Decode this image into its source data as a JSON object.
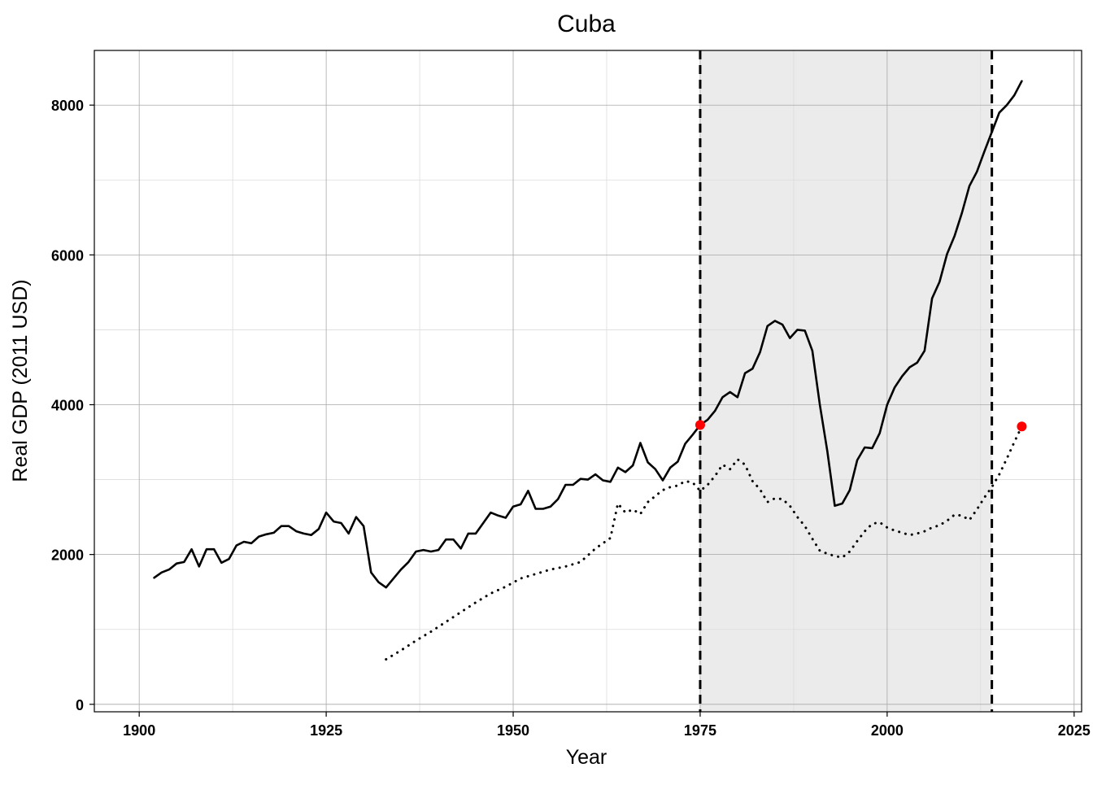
{
  "chart_data": {
    "type": "line",
    "title": "Cuba",
    "xlabel": "Year",
    "ylabel": "Real GDP (2011 USD)",
    "xlim": [
      1894,
      2026
    ],
    "ylim": [
      -100,
      8730
    ],
    "x_ticks": [
      1900,
      1925,
      1950,
      1975,
      2000,
      2025
    ],
    "x_tick_labels": [
      "1900",
      "1925",
      "1950",
      "1975",
      "2000",
      "2025"
    ],
    "y_ticks": [
      0,
      2000,
      4000,
      6000,
      8000
    ],
    "y_tick_labels": [
      "0",
      "2000",
      "4000",
      "6000",
      "8000"
    ],
    "grid": true,
    "shaded_region": {
      "x_start": 1975,
      "x_end": 2014,
      "color": "#ebebeb"
    },
    "vlines": [
      {
        "x": 1975,
        "style": "dashed"
      },
      {
        "x": 2014,
        "style": "dashed"
      }
    ],
    "markers": [
      {
        "x": 1975,
        "y": 3730,
        "color": "#ff0000"
      },
      {
        "x": 2018,
        "y": 3710,
        "color": "#ff0000"
      }
    ],
    "series": [
      {
        "style": "solid",
        "color": "#000000",
        "x": [
          1902,
          1903,
          1904,
          1905,
          1906,
          1907,
          1908,
          1909,
          1910,
          1911,
          1912,
          1913,
          1914,
          1915,
          1916,
          1917,
          1918,
          1919,
          1920,
          1921,
          1922,
          1923,
          1924,
          1925,
          1926,
          1927,
          1928,
          1929,
          1930,
          1931,
          1932,
          1933,
          1934,
          1935,
          1936,
          1937,
          1938,
          1939,
          1940,
          1941,
          1942,
          1943,
          1944,
          1945,
          1946,
          1947,
          1948,
          1949,
          1950,
          1951,
          1952,
          1953,
          1954,
          1955,
          1956,
          1957,
          1958,
          1959,
          1960,
          1961,
          1962,
          1963,
          1964,
          1965,
          1966,
          1967,
          1968,
          1969,
          1970,
          1971,
          1972,
          1973,
          1974,
          1975,
          1976,
          1977,
          1978,
          1979,
          1980,
          1981,
          1982,
          1983,
          1984,
          1985,
          1986,
          1987,
          1988,
          1989,
          1990,
          1991,
          1992,
          1993,
          1994,
          1995,
          1996,
          1997,
          1998,
          1999,
          2000,
          2001,
          2002,
          2003,
          2004,
          2005,
          2006,
          2007,
          2008,
          2009,
          2010,
          2011,
          2012,
          2013,
          2014,
          2015,
          2016,
          2017,
          2018
        ],
        "y": [
          1690,
          1760,
          1800,
          1880,
          1900,
          2070,
          1840,
          2070,
          2070,
          1890,
          1940,
          2120,
          2170,
          2150,
          2240,
          2270,
          2290,
          2380,
          2380,
          2310,
          2280,
          2260,
          2340,
          2560,
          2440,
          2420,
          2280,
          2500,
          2380,
          1760,
          1630,
          1560,
          1680,
          1800,
          1900,
          2040,
          2060,
          2040,
          2060,
          2200,
          2200,
          2080,
          2280,
          2280,
          2420,
          2560,
          2520,
          2490,
          2640,
          2670,
          2850,
          2610,
          2610,
          2640,
          2740,
          2930,
          2930,
          3010,
          3000,
          3070,
          2990,
          2970,
          3160,
          3100,
          3190,
          3490,
          3230,
          3140,
          2990,
          3160,
          3240,
          3480,
          3600,
          3730,
          3800,
          3920,
          4100,
          4170,
          4100,
          4420,
          4480,
          4700,
          5050,
          5120,
          5070,
          4890,
          5000,
          4990,
          4720,
          4000,
          3380,
          2650,
          2680,
          2860,
          3260,
          3430,
          3420,
          3620,
          4000,
          4230,
          4380,
          4500,
          4560,
          4720,
          5420,
          5640,
          6010,
          6250,
          6560,
          6920,
          7110,
          7380,
          7640,
          7900,
          8000,
          8130,
          8320
        ]
      },
      {
        "style": "dotted",
        "color": "#000000",
        "x": [
          1933,
          1935,
          1937,
          1939,
          1941,
          1943,
          1945,
          1947,
          1949,
          1951,
          1953,
          1955,
          1957,
          1959,
          1961,
          1963,
          1964,
          1965,
          1966,
          1967,
          1968,
          1969,
          1970,
          1971,
          1972,
          1973,
          1974,
          1975,
          1976,
          1977,
          1978,
          1979,
          1980,
          1981,
          1982,
          1983,
          1984,
          1985,
          1986,
          1987,
          1988,
          1989,
          1990,
          1991,
          1992,
          1993,
          1994,
          1995,
          1996,
          1997,
          1998,
          1999,
          2000,
          2001,
          2002,
          2003,
          2004,
          2005,
          2006,
          2007,
          2008,
          2009,
          2010,
          2011,
          2012,
          2013,
          2014,
          2015,
          2016,
          2017,
          2018
        ],
        "y": [
          600,
          720,
          850,
          970,
          1100,
          1230,
          1360,
          1480,
          1570,
          1680,
          1740,
          1800,
          1840,
          1900,
          2080,
          2220,
          2680,
          2560,
          2600,
          2540,
          2700,
          2780,
          2860,
          2900,
          2920,
          2980,
          2960,
          2850,
          2930,
          3050,
          3200,
          3140,
          3270,
          3200,
          2980,
          2870,
          2700,
          2750,
          2740,
          2650,
          2500,
          2380,
          2210,
          2050,
          2010,
          1980,
          1960,
          2040,
          2180,
          2310,
          2410,
          2430,
          2360,
          2320,
          2290,
          2260,
          2280,
          2310,
          2360,
          2390,
          2450,
          2530,
          2520,
          2460,
          2600,
          2760,
          2900,
          3070,
          3280,
          3500,
          3710
        ]
      }
    ]
  }
}
